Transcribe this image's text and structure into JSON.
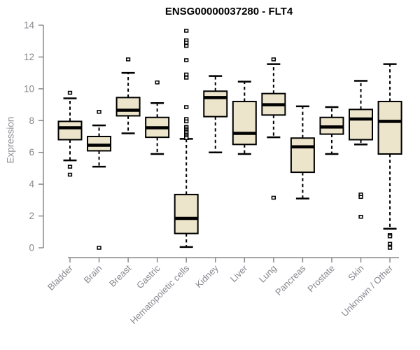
{
  "colors": {
    "box_fill": "#ece5cb",
    "box_stroke": "#000000",
    "median": "#000000",
    "axis": "#8a8a8a",
    "tick_label": "#87878f",
    "title": "#000000",
    "background": "#ffffff"
  },
  "chart_data": {
    "type": "boxplot",
    "title": "ENSG00000037280 - FLT4",
    "xlabel": "",
    "ylabel": "Expression",
    "ylim": [
      0,
      14
    ],
    "yticks": [
      0,
      2,
      4,
      6,
      8,
      10,
      12,
      14
    ],
    "grid": false,
    "legend": false,
    "categories": [
      "Bladder",
      "Brain",
      "Breast",
      "Gastric",
      "Hematopoietic cells",
      "Kidney",
      "Liver",
      "Lung",
      "Pancreas",
      "Prostate",
      "Skin",
      "Unknown / Other"
    ],
    "series": [
      {
        "name": "Bladder",
        "whisker_low": 5.5,
        "q1": 6.8,
        "median": 7.55,
        "q3": 7.95,
        "whisker_high": 9.4,
        "outliers": [
          9.75,
          5.1,
          4.6
        ]
      },
      {
        "name": "Brain",
        "whisker_low": 5.1,
        "q1": 6.1,
        "median": 6.45,
        "q3": 7.0,
        "whisker_high": 7.7,
        "outliers": [
          8.55,
          0
        ]
      },
      {
        "name": "Breast",
        "whisker_low": 7.2,
        "q1": 8.3,
        "median": 8.65,
        "q3": 9.45,
        "whisker_high": 11.0,
        "outliers": [
          11.85
        ]
      },
      {
        "name": "Gastric",
        "whisker_low": 5.9,
        "q1": 6.95,
        "median": 7.55,
        "q3": 8.2,
        "whisker_high": 9.1,
        "outliers": [
          10.4
        ]
      },
      {
        "name": "Hematopoietic cells",
        "whisker_low": 0.05,
        "q1": 0.9,
        "median": 1.85,
        "q3": 3.35,
        "whisker_high": 6.85,
        "outliers": [
          13.65,
          13.05,
          12.9,
          12.7,
          11.8,
          10.9,
          10.7,
          8.85,
          8.1,
          7.95,
          7.6,
          7.5,
          7.4,
          7.3,
          7.2,
          7.1,
          7.0,
          6.9
        ]
      },
      {
        "name": "Kidney",
        "whisker_low": 6.0,
        "q1": 8.25,
        "median": 9.45,
        "q3": 9.85,
        "whisker_high": 10.8,
        "outliers": []
      },
      {
        "name": "Liver",
        "whisker_low": 5.9,
        "q1": 6.5,
        "median": 7.2,
        "q3": 9.2,
        "whisker_high": 10.45,
        "outliers": []
      },
      {
        "name": "Lung",
        "whisker_low": 6.95,
        "q1": 8.35,
        "median": 9.0,
        "q3": 9.7,
        "whisker_high": 11.55,
        "outliers": [
          11.85,
          3.15
        ]
      },
      {
        "name": "Pancreas",
        "whisker_low": 3.1,
        "q1": 4.75,
        "median": 6.35,
        "q3": 6.9,
        "whisker_high": 8.9,
        "outliers": []
      },
      {
        "name": "Prostate",
        "whisker_low": 5.9,
        "q1": 7.15,
        "median": 7.6,
        "q3": 8.2,
        "whisker_high": 8.85,
        "outliers": []
      },
      {
        "name": "Skin",
        "whisker_low": 6.5,
        "q1": 6.8,
        "median": 8.1,
        "q3": 8.7,
        "whisker_high": 10.5,
        "outliers": [
          3.35,
          3.2,
          1.95
        ]
      },
      {
        "name": "Unknown / Other",
        "whisker_low": 1.2,
        "q1": 5.9,
        "median": 7.95,
        "q3": 9.2,
        "whisker_high": 11.55,
        "outliers": [
          0.8,
          0.72,
          0.25,
          0
        ]
      }
    ]
  }
}
